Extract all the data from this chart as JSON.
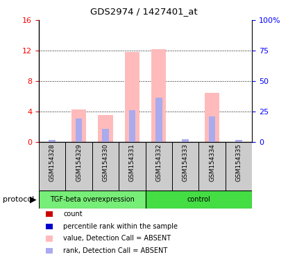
{
  "title": "GDS2974 / 1427401_at",
  "samples": [
    "GSM154328",
    "GSM154329",
    "GSM154330",
    "GSM154331",
    "GSM154332",
    "GSM154333",
    "GSM154334",
    "GSM154335"
  ],
  "value_absent": [
    0.0,
    4.3,
    3.6,
    11.8,
    12.2,
    0.0,
    6.5,
    0.0
  ],
  "rank_absent": [
    0.0,
    3.1,
    1.8,
    4.2,
    5.8,
    0.0,
    3.4,
    0.0
  ],
  "small_rank": [
    0.28,
    0.0,
    0.0,
    0.0,
    0.0,
    0.38,
    0.0,
    0.35
  ],
  "ylim_left": [
    0,
    16
  ],
  "ylim_right": [
    0,
    100
  ],
  "yticks_left": [
    0,
    4,
    8,
    12,
    16
  ],
  "yticks_right": [
    0,
    25,
    50,
    75,
    100
  ],
  "yticklabels_right": [
    "0",
    "25",
    "50",
    "75",
    "100%"
  ],
  "color_value_absent": "#ffbbbb",
  "color_rank_absent": "#aaaaee",
  "color_count": "#cc0000",
  "color_rank_present": "#0000cc",
  "bar_width": 0.55,
  "small_bar_width": 0.25,
  "group1_label": "TGF-beta overexpression",
  "group2_label": "control",
  "group1_color": "#77ee77",
  "group2_color": "#44dd44",
  "group_label_text": "protocol",
  "legend_items": [
    {
      "label": "count",
      "color": "#cc0000"
    },
    {
      "label": "percentile rank within the sample",
      "color": "#0000cc"
    },
    {
      "label": "value, Detection Call = ABSENT",
      "color": "#ffbbbb"
    },
    {
      "label": "rank, Detection Call = ABSENT",
      "color": "#aaaaee"
    }
  ]
}
